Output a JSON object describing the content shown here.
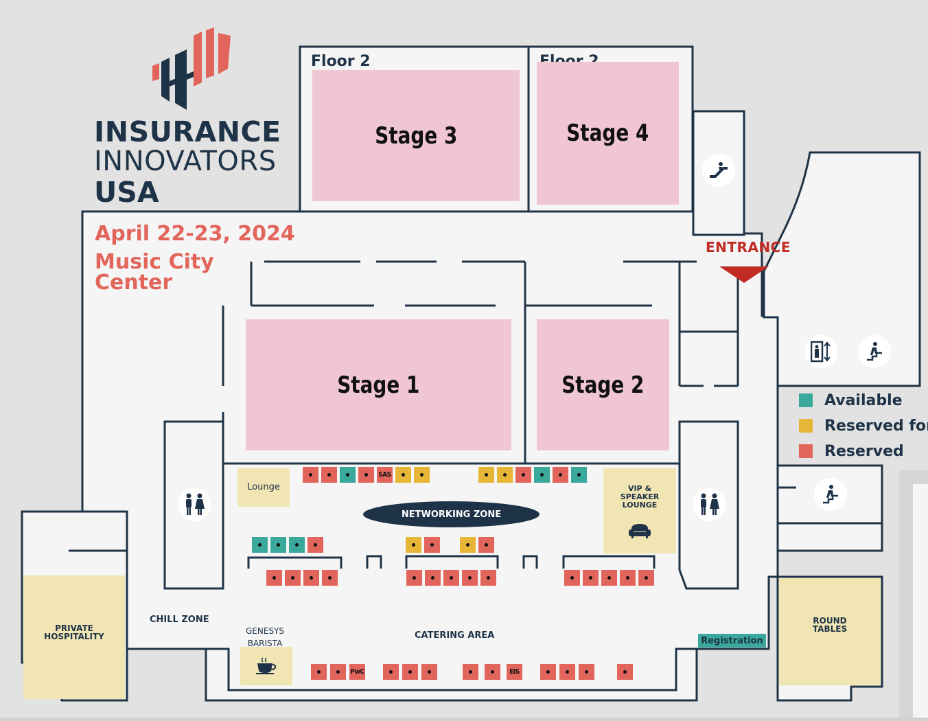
{
  "colors": {
    "available": "#3aa89a",
    "reserved_for": "#e8b636",
    "reserved": "#e2655c",
    "stage": "#f0c6d3",
    "zone": "#f2e5b4",
    "wall": "#1e3347",
    "entrance": "#c22a24"
  },
  "logo": {
    "line1": "INSURANCE",
    "line2": "INNOVATORS",
    "line3": "USA"
  },
  "event": {
    "date": "April 22-23, 2024",
    "venue_line1": "Music City",
    "venue_line2": "Center"
  },
  "floors": {
    "left_label": "Floor 2",
    "right_label": "Floor 2"
  },
  "stages": {
    "stage1": "Stage 1",
    "stage2": "Stage 2",
    "stage3": "Stage 3",
    "stage4": "Stage 4"
  },
  "areas": {
    "entrance": "ENTRANCE",
    "lounge": "Lounge",
    "vip_line1": "VIP &",
    "vip_line2": "SPEAKER LOUNGE",
    "networking": "NETWORKING ZONE",
    "chill": "CHILL ZONE",
    "private_line1": "PRIVATE",
    "private_line2": "HOSPITALITY",
    "genesys_line1": "GENESYS",
    "genesys_line2": "BARISTA",
    "catering": "CATERING AREA",
    "registration": "Registration",
    "round_line1": "ROUND",
    "round_line2": "TABLES"
  },
  "legend": [
    {
      "label": "Available",
      "status": "available"
    },
    {
      "label": "Reserved for C",
      "status": "reserved_for"
    },
    {
      "label": "Reserved",
      "status": "reserved"
    }
  ],
  "icons": {
    "escalator": "escalator-icon",
    "elevator": "elevator-icon",
    "stairs": "stairs-icon",
    "restroom": "restroom-icon",
    "coffee": "coffee-cup-icon",
    "sofa": "sofa-icon"
  },
  "booths": [
    {
      "row": "top-left",
      "status": "reserved",
      "label": ""
    },
    {
      "row": "top-left",
      "status": "reserved",
      "label": ""
    },
    {
      "row": "top-left",
      "status": "available",
      "label": ""
    },
    {
      "row": "top-left",
      "status": "reserved",
      "label": ""
    },
    {
      "row": "top-left",
      "status": "reserved",
      "label": "SAS"
    },
    {
      "row": "top-left",
      "status": "reserved_for",
      "label": ""
    },
    {
      "row": "top-left",
      "status": "reserved_for",
      "label": ""
    },
    {
      "row": "top-right",
      "status": "reserved_for",
      "label": ""
    },
    {
      "row": "top-right",
      "status": "reserved_for",
      "label": ""
    },
    {
      "row": "top-right",
      "status": "reserved",
      "label": ""
    },
    {
      "row": "top-right",
      "status": "available",
      "label": ""
    },
    {
      "row": "top-right",
      "status": "reserved",
      "label": ""
    },
    {
      "row": "top-right",
      "status": "available",
      "label": ""
    },
    {
      "row": "mid-left",
      "status": "available",
      "label": ""
    },
    {
      "row": "mid-left",
      "status": "available",
      "label": ""
    },
    {
      "row": "mid-left",
      "status": "available",
      "label": ""
    },
    {
      "row": "mid-left",
      "status": "reserved",
      "label": ""
    },
    {
      "row": "mid-center",
      "status": "reserved_for",
      "label": ""
    },
    {
      "row": "mid-center",
      "status": "reserved",
      "label": ""
    },
    {
      "row": "mid-center2",
      "status": "reserved_for",
      "label": ""
    },
    {
      "row": "mid-center2",
      "status": "reserved",
      "label": ""
    },
    {
      "row": "lower-left",
      "status": "reserved",
      "label": ""
    },
    {
      "row": "lower-left",
      "status": "reserved",
      "label": ""
    },
    {
      "row": "lower-left",
      "status": "reserved",
      "label": ""
    },
    {
      "row": "lower-left",
      "status": "reserved",
      "label": ""
    },
    {
      "row": "lower-center",
      "status": "reserved",
      "label": ""
    },
    {
      "row": "lower-center",
      "status": "reserved",
      "label": ""
    },
    {
      "row": "lower-center",
      "status": "reserved",
      "label": ""
    },
    {
      "row": "lower-center",
      "status": "reserved",
      "label": ""
    },
    {
      "row": "lower-center",
      "status": "reserved",
      "label": ""
    },
    {
      "row": "lower-right",
      "status": "reserved",
      "label": ""
    },
    {
      "row": "lower-right",
      "status": "reserved",
      "label": ""
    },
    {
      "row": "lower-right",
      "status": "reserved",
      "label": ""
    },
    {
      "row": "lower-right",
      "status": "reserved",
      "label": ""
    },
    {
      "row": "lower-right",
      "status": "reserved",
      "label": ""
    },
    {
      "row": "bottom",
      "status": "reserved",
      "label": ""
    },
    {
      "row": "bottom",
      "status": "reserved",
      "label": ""
    },
    {
      "row": "bottom",
      "status": "reserved",
      "label": "PwC"
    },
    {
      "row": "bottom",
      "status": "reserved",
      "label": ""
    },
    {
      "row": "bottom",
      "status": "reserved",
      "label": ""
    },
    {
      "row": "bottom",
      "status": "reserved",
      "label": ""
    },
    {
      "row": "bottom",
      "status": "reserved",
      "label": ""
    },
    {
      "row": "bottom",
      "status": "reserved",
      "label": ""
    },
    {
      "row": "bottom",
      "status": "reserved",
      "label": "EIS"
    },
    {
      "row": "bottom",
      "status": "reserved",
      "label": ""
    },
    {
      "row": "bottom",
      "status": "reserved",
      "label": ""
    },
    {
      "row": "bottom",
      "status": "reserved",
      "label": ""
    },
    {
      "row": "bottom",
      "status": "reserved",
      "label": ""
    }
  ]
}
